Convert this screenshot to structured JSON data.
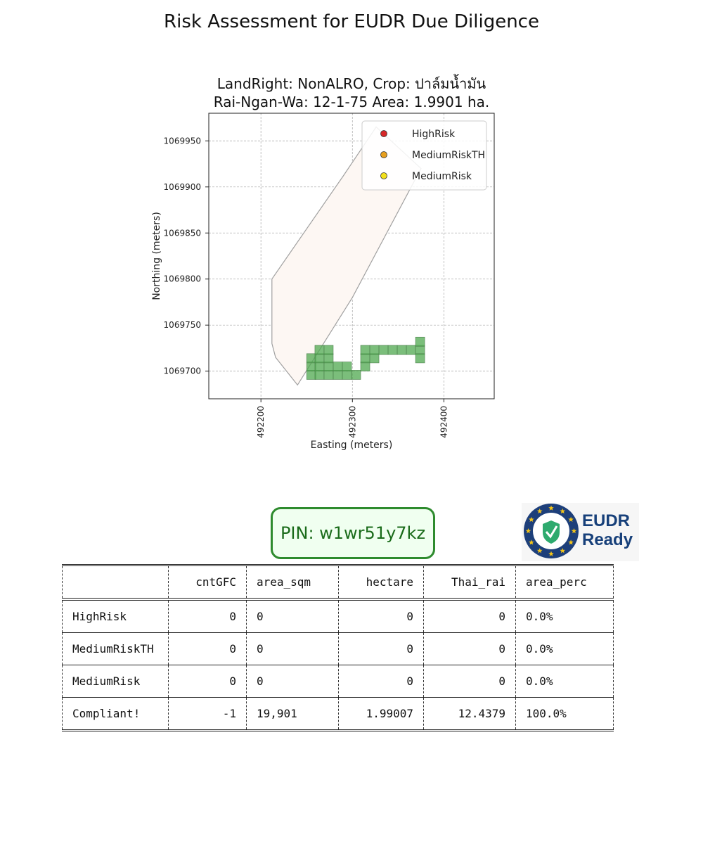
{
  "page": {
    "title": "Risk Assessment for EUDR Due Diligence"
  },
  "chart_data": {
    "type": "scatter",
    "title_line1": "LandRight: NonALRO,  Crop: ปาล์มน้ำมัน",
    "title_line2": "Rai-Ngan-Wa: 12-1-75    Area: 1.9901 ha.",
    "xlabel": "Easting (meters)",
    "ylabel": "Northing (meters)",
    "xlim": [
      492143,
      492455
    ],
    "ylim": [
      1069670,
      1069980
    ],
    "xticks": [
      492200,
      492300,
      492400
    ],
    "yticks": [
      1069700,
      1069750,
      1069800,
      1069850,
      1069900,
      1069950
    ],
    "grid": true,
    "legend_location": "top-right",
    "legend": [
      {
        "name": "HighRisk",
        "color": "#d62728"
      },
      {
        "name": "MediumRiskTH",
        "color": "#e69f1f"
      },
      {
        "name": "MediumRisk",
        "color": "#f2e01c"
      }
    ],
    "parcel_polygon": [
      [
        492212,
        1069800
      ],
      [
        492290,
        1069912
      ],
      [
        492326,
        1069965
      ],
      [
        492375,
        1069920
      ],
      [
        492300,
        1069780
      ],
      [
        492240,
        1069685
      ],
      [
        492216,
        1069715
      ],
      [
        492212,
        1069730
      ]
    ],
    "compliant_cells": [
      [
        492255,
        1069696
      ],
      [
        492264,
        1069696
      ],
      [
        492274,
        1069696
      ],
      [
        492284,
        1069696
      ],
      [
        492294,
        1069696
      ],
      [
        492304,
        1069696
      ],
      [
        492255,
        1069705
      ],
      [
        492264,
        1069705
      ],
      [
        492274,
        1069705
      ],
      [
        492284,
        1069705
      ],
      [
        492294,
        1069705
      ],
      [
        492255,
        1069714
      ],
      [
        492264,
        1069714
      ],
      [
        492274,
        1069714
      ],
      [
        492264,
        1069723
      ],
      [
        492274,
        1069723
      ],
      [
        492314,
        1069705
      ],
      [
        492314,
        1069714
      ],
      [
        492324,
        1069714
      ],
      [
        492314,
        1069723
      ],
      [
        492324,
        1069723
      ],
      [
        492334,
        1069723
      ],
      [
        492344,
        1069723
      ],
      [
        492354,
        1069723
      ],
      [
        492364,
        1069723
      ],
      [
        492374,
        1069723
      ],
      [
        492374,
        1069714
      ],
      [
        492374,
        1069732
      ]
    ],
    "cell_color": "#4fa84f"
  },
  "pin": {
    "label": "PIN: w1wr51y7kz"
  },
  "logo": {
    "line1": "EUDR",
    "line2": "Ready",
    "colors": {
      "ring": "#1d3f7a",
      "star": "#f5c518",
      "leaf": "#2eaa6e"
    }
  },
  "table": {
    "headers": [
      "",
      "cntGFC",
      "area_sqm",
      "hectare",
      "Thai_rai",
      "area_perc"
    ],
    "rows": [
      [
        "HighRisk",
        "0",
        "0",
        "0",
        "0",
        "0.0%"
      ],
      [
        "MediumRiskTH",
        "0",
        "0",
        "0",
        "0",
        "0.0%"
      ],
      [
        "MediumRisk",
        "0",
        "0",
        "0",
        "0",
        "0.0%"
      ],
      [
        "Compliant!",
        "-1",
        "19,901",
        "1.99007",
        "12.4379",
        "100.0%"
      ]
    ]
  }
}
